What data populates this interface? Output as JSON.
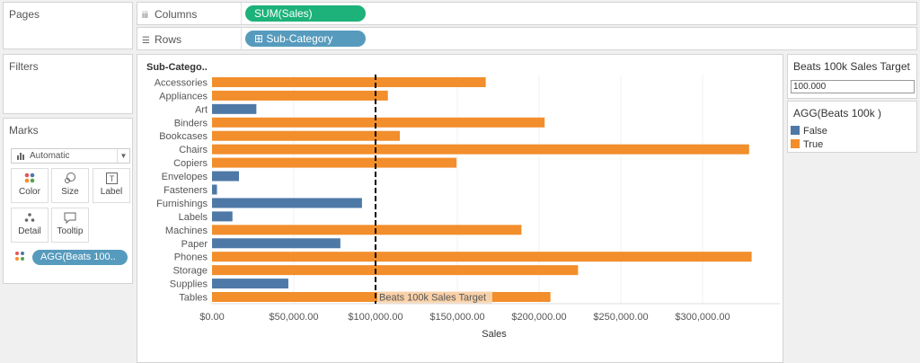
{
  "pages": {
    "title": "Pages"
  },
  "filters": {
    "title": "Filters"
  },
  "marks": {
    "title": "Marks",
    "type_value": "Automatic",
    "buttons": [
      {
        "label": "Color",
        "icon": "color-dots-icon"
      },
      {
        "label": "Size",
        "icon": "size-icon"
      },
      {
        "label": "Label",
        "icon": "label-T-icon"
      },
      {
        "label": "Detail",
        "icon": "detail-icon"
      },
      {
        "label": "Tooltip",
        "icon": "tooltip-icon"
      }
    ],
    "color_pill": "AGG(Beats 100.."
  },
  "shelves": {
    "columns": {
      "label": "Columns",
      "pill": "SUM(Sales)"
    },
    "rows": {
      "label": "Rows",
      "pill": "Sub-Category"
    }
  },
  "parameter": {
    "title": "Beats 100k Sales Target",
    "value": "100.000"
  },
  "legend": {
    "title": "AGG(Beats 100k )",
    "items": [
      {
        "label": "False",
        "color": "#4e79a7"
      },
      {
        "label": "True",
        "color": "#f28e2b"
      }
    ]
  },
  "colors": {
    "false": "#4e79a7",
    "true": "#f28e2b",
    "dimension_pill": "#569bbd",
    "measure_pill": "#1cb27a"
  },
  "chart_data": {
    "type": "bar",
    "orientation": "horizontal",
    "row_header": "Sub-Catego..",
    "xlabel": "Sales",
    "xlim": [
      0,
      350000
    ],
    "x_ticks": [
      "$0.00",
      "$50,000.00",
      "$100,000.00",
      "$150,000.00",
      "$200,000.00",
      "$250,000.00",
      "$300,000.00"
    ],
    "x_tick_values": [
      0,
      50000,
      100000,
      150000,
      200000,
      250000,
      300000
    ],
    "categories": [
      "Accessories",
      "Appliances",
      "Art",
      "Binders",
      "Bookcases",
      "Chairs",
      "Copiers",
      "Envelopes",
      "Fasteners",
      "Furnishings",
      "Labels",
      "Machines",
      "Paper",
      "Phones",
      "Storage",
      "Supplies",
      "Tables"
    ],
    "values": [
      167380,
      107532,
      27119,
      203413,
      114880,
      328449,
      149528,
      16476,
      3024,
      91705,
      12486,
      189239,
      78479,
      330007,
      223844,
      46674,
      206966
    ],
    "beats_target": [
      true,
      true,
      false,
      true,
      true,
      true,
      true,
      false,
      false,
      false,
      false,
      true,
      false,
      true,
      true,
      false,
      true
    ],
    "reference_line": {
      "value": 100000,
      "label": "Beats 100k Sales Target"
    },
    "grid": true
  }
}
